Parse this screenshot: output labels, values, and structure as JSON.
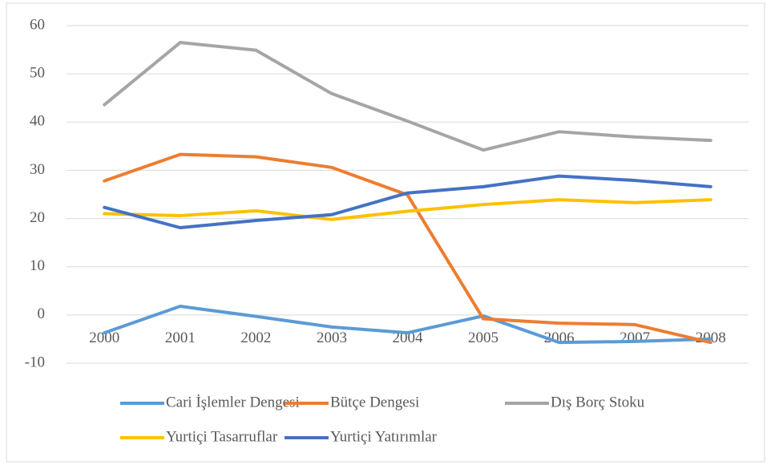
{
  "chart_data": {
    "type": "line",
    "categories": [
      "2000",
      "2001",
      "2002",
      "2003",
      "2004",
      "2005",
      "2006",
      "2007",
      "2008"
    ],
    "series": [
      {
        "name": "Cari İşlemler Dengesi",
        "color": "#5b9bd5",
        "values": [
          -3.7,
          1.8,
          -0.3,
          -2.5,
          -3.7,
          -0.2,
          -5.7,
          -5.5,
          -5.0
        ]
      },
      {
        "name": "Bütçe Dengesi",
        "color": "#ed7d31",
        "values": [
          27.8,
          33.3,
          32.8,
          30.6,
          24.9,
          -0.8,
          -1.7,
          -2.0,
          -5.7
        ]
      },
      {
        "name": "Dış Borç Stoku",
        "color": "#a5a5a5",
        "values": [
          43.6,
          56.5,
          54.9,
          45.9,
          40.2,
          34.2,
          38.0,
          36.9,
          36.2
        ]
      },
      {
        "name": "Yurtiçi Tasarruflar",
        "color": "#ffc000",
        "values": [
          21.0,
          20.6,
          21.6,
          19.8,
          21.5,
          22.9,
          23.9,
          23.3,
          23.9
        ]
      },
      {
        "name": "Yurtiçi Yatırımlar",
        "color": "#4472c4",
        "values": [
          22.3,
          18.1,
          19.6,
          20.8,
          25.3,
          26.6,
          28.8,
          27.9,
          26.6
        ]
      }
    ],
    "ylim": [
      -10,
      60
    ],
    "yticks": [
      -10,
      0,
      10,
      20,
      30,
      40,
      50,
      60
    ],
    "grid": true,
    "legend": "bottom"
  }
}
